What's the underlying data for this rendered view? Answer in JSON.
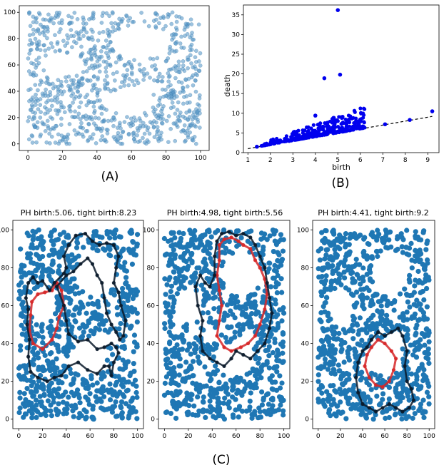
{
  "chart_data": [
    {
      "id": "A",
      "panel_label": "(A)",
      "type": "scatter",
      "title": "",
      "xlabel": "",
      "ylabel": "",
      "xlim": [
        -5,
        105
      ],
      "ylim": [
        -5,
        105
      ],
      "xticks": [
        0,
        20,
        40,
        60,
        80,
        100
      ],
      "yticks": [
        0,
        20,
        40,
        60,
        80,
        100
      ],
      "point_color": "#5b9bc9",
      "point_count": 900,
      "holes": [
        {
          "center": [
            65,
            77
          ],
          "radii": [
            17,
            12
          ]
        },
        {
          "center": [
            20,
            60
          ],
          "radii": [
            12,
            9
          ]
        },
        {
          "center": [
            58,
            32
          ],
          "radii": [
            16,
            9
          ]
        },
        {
          "center": [
            70,
            42
          ],
          "radii": [
            8,
            5
          ]
        }
      ]
    },
    {
      "id": "B",
      "panel_label": "(B)",
      "type": "scatter",
      "title": "",
      "xlabel": "birth",
      "ylabel": "death",
      "xlim": [
        0.8,
        9.5
      ],
      "ylim": [
        0,
        37.5
      ],
      "xticks": [
        1,
        2,
        3,
        4,
        5,
        6,
        7,
        8,
        9
      ],
      "yticks": [
        0,
        5,
        10,
        15,
        20,
        25,
        30,
        35
      ],
      "point_color": "#0000ee",
      "diagonal": {
        "x": [
          1.0,
          9.2
        ],
        "y": [
          1.0,
          9.2
        ],
        "style": "dashed"
      },
      "highlight_points": [
        {
          "birth": 5.0,
          "death": 36.2
        },
        {
          "birth": 4.4,
          "death": 18.9
        },
        {
          "birth": 5.1,
          "death": 19.8
        },
        {
          "birth": 9.2,
          "death": 10.5
        },
        {
          "birth": 8.2,
          "death": 8.3
        },
        {
          "birth": 7.1,
          "death": 7.2
        },
        {
          "birth": 1.4,
          "death": 1.5
        },
        {
          "birth": 4.0,
          "death": 9.4
        },
        {
          "birth": 4.8,
          "death": 8.8
        },
        {
          "birth": 5.5,
          "death": 8.4
        },
        {
          "birth": 5.9,
          "death": 7.9
        }
      ],
      "cluster_point_count": 320
    },
    {
      "id": "C1",
      "type": "scatter",
      "title": "PH birth:5.06, tight birth:8.23",
      "xlabel": "",
      "ylabel": "",
      "xlim": [
        -5,
        105
      ],
      "ylim": [
        -5,
        105
      ],
      "xticks": [
        0,
        20,
        40,
        60,
        80,
        100
      ],
      "yticks": [
        0,
        20,
        40,
        60,
        80,
        100
      ],
      "point_color": "#1f77b4",
      "loops": [
        {
          "color": "#d62728",
          "points": [
            [
              11,
              62
            ],
            [
              16,
              66
            ],
            [
              22,
              67
            ],
            [
              28,
              68
            ],
            [
              32,
              72
            ],
            [
              36,
              68
            ],
            [
              38,
              60
            ],
            [
              34,
              54
            ],
            [
              32,
              48
            ],
            [
              28,
              42
            ],
            [
              20,
              37
            ],
            [
              12,
              40
            ],
            [
              9,
              47
            ],
            [
              10,
              55
            ]
          ]
        },
        {
          "color": "#0a1a2a",
          "points": [
            [
              32,
              70
            ],
            [
              38,
              60
            ],
            [
              40,
              52
            ],
            [
              42,
              45
            ],
            [
              50,
              41
            ],
            [
              58,
              42
            ],
            [
              66,
              37
            ],
            [
              72,
              38
            ],
            [
              78,
              40
            ],
            [
              82,
              38
            ],
            [
              84,
              35
            ],
            [
              80,
              30
            ],
            [
              78,
              23
            ],
            [
              76,
              28
            ],
            [
              72,
              28
            ],
            [
              66,
              24
            ],
            [
              58,
              26
            ],
            [
              50,
              30
            ],
            [
              42,
              28
            ],
            [
              36,
              23
            ],
            [
              30,
              22
            ],
            [
              24,
              20
            ],
            [
              16,
              22
            ],
            [
              10,
              25
            ],
            [
              8,
              33
            ],
            [
              9,
              42
            ],
            [
              7,
              50
            ],
            [
              8,
              58
            ],
            [
              6,
              64
            ],
            [
              8,
              72
            ],
            [
              12,
              75
            ],
            [
              16,
              72
            ],
            [
              20,
              73
            ],
            [
              26,
              68
            ],
            [
              30,
              72
            ],
            [
              38,
              77
            ],
            [
              40,
              80
            ],
            [
              38,
              86
            ],
            [
              42,
              92
            ],
            [
              48,
              97
            ],
            [
              56,
              98
            ],
            [
              62,
              94
            ],
            [
              68,
              92
            ],
            [
              74,
              93
            ],
            [
              80,
              92
            ],
            [
              84,
              86
            ],
            [
              82,
              80
            ],
            [
              80,
              72
            ],
            [
              84,
              67
            ],
            [
              86,
              60
            ],
            [
              90,
              52
            ],
            [
              88,
              44
            ],
            [
              85,
              42
            ],
            [
              82,
              46
            ],
            [
              78,
              50
            ],
            [
              74,
              56
            ],
            [
              72,
              64
            ],
            [
              70,
              72
            ],
            [
              66,
              76
            ],
            [
              62,
              82
            ],
            [
              58,
              85
            ],
            [
              52,
              82
            ],
            [
              46,
              78
            ],
            [
              40,
              76
            ]
          ]
        }
      ]
    },
    {
      "id": "C2",
      "type": "scatter",
      "title": "PH birth:4.98, tight birth:5.56",
      "xlabel": "",
      "ylabel": "",
      "xlim": [
        -5,
        105
      ],
      "ylim": [
        -5,
        105
      ],
      "xticks": [
        0,
        20,
        40,
        60,
        80,
        100
      ],
      "yticks": [
        0,
        20,
        40,
        60,
        80,
        100
      ],
      "point_color": "#1f77b4",
      "loops": [
        {
          "color": "#d62728",
          "points": [
            [
              46,
              92
            ],
            [
              50,
              95
            ],
            [
              56,
              96
            ],
            [
              62,
              94
            ],
            [
              66,
              92
            ],
            [
              72,
              90
            ],
            [
              76,
              84
            ],
            [
              80,
              80
            ],
            [
              84,
              74
            ],
            [
              86,
              66
            ],
            [
              84,
              58
            ],
            [
              80,
              50
            ],
            [
              76,
              44
            ],
            [
              70,
              40
            ],
            [
              64,
              38
            ],
            [
              56,
              36
            ],
            [
              50,
              38
            ],
            [
              44,
              44
            ],
            [
              46,
              52
            ],
            [
              48,
              60
            ],
            [
              46,
              68
            ],
            [
              44,
              76
            ],
            [
              46,
              84
            ]
          ]
        },
        {
          "color": "#0a1a2a",
          "points": [
            [
              42,
              76
            ],
            [
              38,
              70
            ],
            [
              34,
              72
            ],
            [
              30,
              76
            ],
            [
              26,
              70
            ],
            [
              28,
              60
            ],
            [
              32,
              52
            ],
            [
              30,
              44
            ],
            [
              32,
              36
            ],
            [
              38,
              32
            ],
            [
              44,
              30
            ],
            [
              50,
              28
            ],
            [
              56,
              32
            ],
            [
              60,
              36
            ],
            [
              66,
              34
            ],
            [
              72,
              32
            ],
            [
              78,
              36
            ],
            [
              84,
              40
            ],
            [
              88,
              48
            ],
            [
              90,
              56
            ],
            [
              88,
              64
            ],
            [
              86,
              72
            ],
            [
              84,
              80
            ],
            [
              80,
              86
            ],
            [
              76,
              92
            ],
            [
              72,
              96
            ],
            [
              66,
              98
            ],
            [
              60,
              97
            ],
            [
              54,
              99
            ],
            [
              48,
              98
            ],
            [
              44,
              94
            ],
            [
              42,
              86
            ]
          ]
        }
      ]
    },
    {
      "id": "C3",
      "type": "scatter",
      "title": "PH birth:4.41, tight birth:9.2",
      "xlabel": "",
      "ylabel": "",
      "xlim": [
        -5,
        105
      ],
      "ylim": [
        -5,
        105
      ],
      "xticks": [
        0,
        20,
        40,
        60,
        80,
        100
      ],
      "yticks": [
        0,
        20,
        40,
        60,
        80,
        100
      ],
      "point_color": "#1f77b4",
      "loops": [
        {
          "color": "#d62728",
          "points": [
            [
              44,
              34
            ],
            [
              48,
              38
            ],
            [
              54,
              42
            ],
            [
              60,
              40
            ],
            [
              66,
              36
            ],
            [
              70,
              32
            ],
            [
              68,
              26
            ],
            [
              64,
              20
            ],
            [
              58,
              17
            ],
            [
              52,
              18
            ],
            [
              46,
              22
            ],
            [
              42,
              28
            ]
          ]
        },
        {
          "color": "#0a1a2a",
          "points": [
            [
              40,
              36
            ],
            [
              36,
              30
            ],
            [
              34,
              22
            ],
            [
              36,
              14
            ],
            [
              40,
              8
            ],
            [
              46,
              6
            ],
            [
              52,
              4
            ],
            [
              58,
              6
            ],
            [
              64,
              8
            ],
            [
              70,
              6
            ],
            [
              76,
              4
            ],
            [
              82,
              6
            ],
            [
              86,
              10
            ],
            [
              84,
              16
            ],
            [
              80,
              20
            ],
            [
              78,
              28
            ],
            [
              80,
              36
            ],
            [
              76,
              44
            ],
            [
              72,
              48
            ],
            [
              66,
              46
            ],
            [
              60,
              44
            ],
            [
              54,
              46
            ],
            [
              48,
              42
            ],
            [
              44,
              38
            ]
          ]
        }
      ]
    }
  ],
  "figure": {
    "bottom_label": "(C)"
  }
}
